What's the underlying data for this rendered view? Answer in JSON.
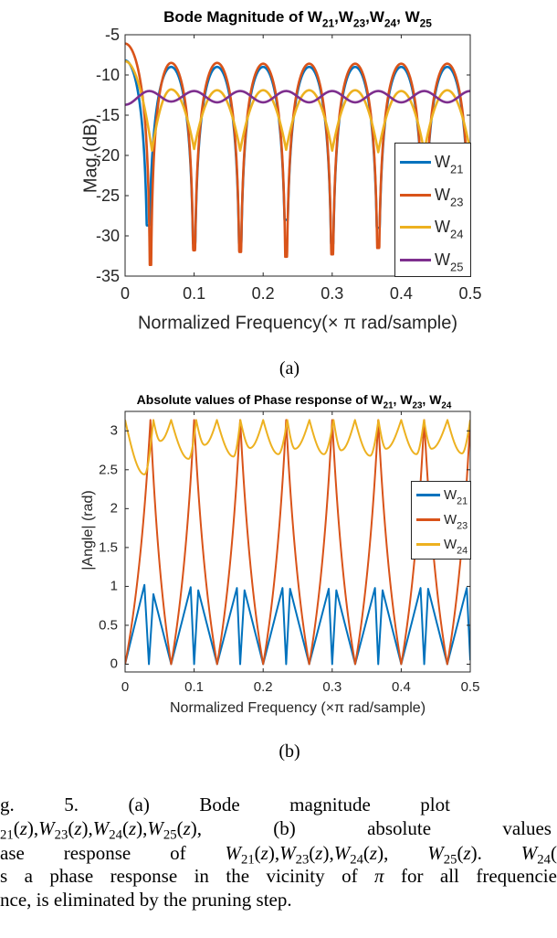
{
  "chart_data": [
    {
      "type": "line",
      "title_parts": [
        {
          "t": "Bode Magnitude of W"
        },
        {
          "t": "21",
          "sub": true
        },
        {
          "t": ",W"
        },
        {
          "t": "23",
          "sub": true
        },
        {
          "t": ",W"
        },
        {
          "t": "24",
          "sub": true
        },
        {
          "t": ", W"
        },
        {
          "t": "25",
          "sub": true
        }
      ],
      "xlabel": "Normalized Frequency(× π rad/sample)",
      "ylabel": "Mag.(dB)",
      "xlim": [
        0,
        0.5
      ],
      "ylim": [
        -35,
        -5
      ],
      "xticks": [
        "0",
        "0.1",
        "0.2",
        "0.3",
        "0.4",
        "0.5"
      ],
      "yticks": [
        "-5",
        "-10",
        "-15",
        "-20",
        "-25",
        "-30",
        "-35"
      ],
      "grid": false,
      "legend_placement": "bottom-right",
      "panel_label": "(a)",
      "series": [
        {
          "name": "W",
          "sub": "21",
          "color": "#0072BD",
          "interp": "log-notch",
          "points": [
            [
              0,
              -8.2
            ],
            [
              0.0333,
              -28.7
            ],
            [
              0.0667,
              -9
            ],
            [
              0.1,
              -31
            ],
            [
              0.1333,
              -9
            ],
            [
              0.1667,
              -31
            ],
            [
              0.2,
              -9
            ],
            [
              0.2333,
              -28
            ],
            [
              0.2667,
              -9
            ],
            [
              0.3,
              -31
            ],
            [
              0.3333,
              -9
            ],
            [
              0.3667,
              -29
            ],
            [
              0.4,
              -9
            ],
            [
              0.4333,
              -30
            ],
            [
              0.4667,
              -9
            ],
            [
              0.5,
              -29.5
            ]
          ]
        },
        {
          "name": "W",
          "sub": "23",
          "color": "#D95319",
          "interp": "log-notch",
          "points": [
            [
              0,
              -6.1
            ],
            [
              0.0367,
              -33.6
            ],
            [
              0.0667,
              -8.5
            ],
            [
              0.1,
              -31.8
            ],
            [
              0.1333,
              -8.5
            ],
            [
              0.1667,
              -32
            ],
            [
              0.2,
              -8.6
            ],
            [
              0.2333,
              -32.6
            ],
            [
              0.2667,
              -8.6
            ],
            [
              0.3,
              -32.3
            ],
            [
              0.3333,
              -8.6
            ],
            [
              0.3667,
              -31.5
            ],
            [
              0.4,
              -8.6
            ],
            [
              0.4333,
              -32
            ],
            [
              0.4667,
              -8.6
            ],
            [
              0.5,
              -32.5
            ]
          ]
        },
        {
          "name": "W",
          "sub": "24",
          "color": "#EDB120",
          "interp": "power",
          "points": [
            [
              0,
              -8.3
            ],
            [
              0.039,
              -19.4
            ],
            [
              0.0667,
              -11.8
            ],
            [
              0.1,
              -19.2
            ],
            [
              0.1333,
              -11.9
            ],
            [
              0.1667,
              -19.4
            ],
            [
              0.2,
              -11.9
            ],
            [
              0.2333,
              -19.3
            ],
            [
              0.2667,
              -11.9
            ],
            [
              0.3,
              -19.4
            ],
            [
              0.3333,
              -11.9
            ],
            [
              0.3667,
              -19.6
            ],
            [
              0.4,
              -12
            ],
            [
              0.4333,
              -19.5
            ],
            [
              0.4667,
              -11.9
            ],
            [
              0.5,
              -19.5
            ]
          ]
        },
        {
          "name": "W",
          "sub": "25",
          "color": "#7E2F8E",
          "interp": "cosine",
          "points": [
            [
              0,
              -13.7
            ],
            [
              0.035,
              -12
            ],
            [
              0.0667,
              -13.3
            ],
            [
              0.1,
              -12
            ],
            [
              0.1333,
              -13.4
            ],
            [
              0.1667,
              -12
            ],
            [
              0.2,
              -13.4
            ],
            [
              0.2333,
              -12
            ],
            [
              0.2667,
              -13.4
            ],
            [
              0.3,
              -12
            ],
            [
              0.3333,
              -13.4
            ],
            [
              0.3667,
              -12
            ],
            [
              0.4,
              -13.4
            ],
            [
              0.4333,
              -12
            ],
            [
              0.4667,
              -13.4
            ],
            [
              0.5,
              -12
            ]
          ]
        }
      ]
    },
    {
      "type": "line",
      "title_parts": [
        {
          "t": "Absolute values of Phase response of W"
        },
        {
          "t": "21",
          "sub": true
        },
        {
          "t": ", W"
        },
        {
          "t": "23",
          "sub": true
        },
        {
          "t": ", W"
        },
        {
          "t": "24",
          "sub": true
        }
      ],
      "xlabel": "Normalized Frequency (×π rad/sample)",
      "ylabel": "|Angle| (rad)",
      "xlim": [
        0,
        0.5
      ],
      "ylim": [
        -0.1,
        3.25
      ],
      "xticks": [
        "0",
        "0.1",
        "0.2",
        "0.3",
        "0.4",
        "0.5"
      ],
      "yticks": [
        "0",
        "0.5",
        "1",
        "1.5",
        "2",
        "2.5",
        "3"
      ],
      "grid": false,
      "legend_placement": "right",
      "panel_label": "(b)",
      "series": [
        {
          "name": "W",
          "sub": "21",
          "color": "#0072BD",
          "interp": "linear",
          "points": [
            [
              0,
              0
            ],
            [
              0.028,
              1.02
            ],
            [
              0.0345,
              0
            ],
            [
              0.041,
              0.9
            ],
            [
              0.0667,
              0
            ],
            [
              0.095,
              0.99
            ],
            [
              0.1,
              0
            ],
            [
              0.106,
              0.95
            ],
            [
              0.1333,
              0
            ],
            [
              0.162,
              0.98
            ],
            [
              0.1667,
              0
            ],
            [
              0.173,
              0.95
            ],
            [
              0.2,
              0
            ],
            [
              0.228,
              0.98
            ],
            [
              0.2333,
              0
            ],
            [
              0.239,
              0.97
            ],
            [
              0.2667,
              0
            ],
            [
              0.295,
              0.97
            ],
            [
              0.3,
              0
            ],
            [
              0.306,
              0.95
            ],
            [
              0.3333,
              0
            ],
            [
              0.362,
              0.98
            ],
            [
              0.3667,
              0
            ],
            [
              0.373,
              0.95
            ],
            [
              0.4,
              0
            ],
            [
              0.428,
              0.98
            ],
            [
              0.4333,
              0
            ],
            [
              0.439,
              0.97
            ],
            [
              0.4667,
              0
            ],
            [
              0.495,
              0.98
            ],
            [
              0.5,
              0.05
            ]
          ]
        },
        {
          "name": "W",
          "sub": "23",
          "color": "#D95319",
          "interp": "spike",
          "points": [
            [
              0,
              0
            ],
            [
              0.0367,
              3.14
            ],
            [
              0.0667,
              0
            ],
            [
              0.1,
              3.14
            ],
            [
              0.1333,
              0
            ],
            [
              0.1667,
              3.14
            ],
            [
              0.2,
              0
            ],
            [
              0.2333,
              3.14
            ],
            [
              0.2667,
              0
            ],
            [
              0.3,
              3.14
            ],
            [
              0.3333,
              0
            ],
            [
              0.3667,
              3.14
            ],
            [
              0.4,
              0
            ],
            [
              0.4333,
              3.14
            ],
            [
              0.4667,
              0
            ],
            [
              0.5,
              3.14
            ]
          ]
        },
        {
          "name": "W",
          "sub": "24",
          "color": "#EDB120",
          "interp": "sine-dip",
          "points": [
            [
              0,
              3.14
            ],
            [
              0.028,
              2.44
            ],
            [
              0.041,
              3.14
            ],
            [
              0.051,
              2.87
            ],
            [
              0.0667,
              3.14
            ],
            [
              0.092,
              2.64
            ],
            [
              0.103,
              3.14
            ],
            [
              0.115,
              2.82
            ],
            [
              0.133,
              3.14
            ],
            [
              0.157,
              2.67
            ],
            [
              0.167,
              3.14
            ],
            [
              0.181,
              2.78
            ],
            [
              0.2,
              3.14
            ],
            [
              0.222,
              2.7
            ],
            [
              0.235,
              3.14
            ],
            [
              0.246,
              2.77
            ],
            [
              0.267,
              3.14
            ],
            [
              0.288,
              2.7
            ],
            [
              0.302,
              3.14
            ],
            [
              0.313,
              2.75
            ],
            [
              0.333,
              3.14
            ],
            [
              0.355,
              2.68
            ],
            [
              0.367,
              3.14
            ],
            [
              0.378,
              2.77
            ],
            [
              0.4,
              3.14
            ],
            [
              0.422,
              2.7
            ],
            [
              0.433,
              3.14
            ],
            [
              0.444,
              2.77
            ],
            [
              0.467,
              3.14
            ],
            [
              0.488,
              2.71
            ],
            [
              0.5,
              3.14
            ]
          ]
        }
      ]
    }
  ],
  "caption": {
    "lines": [
      [
        [
          [
            "g.",
            ""
          ]
        ],
        [
          [
            "5.",
            ""
          ]
        ],
        [
          [
            "(a)",
            ""
          ]
        ],
        [
          [
            "Bode",
            ""
          ]
        ],
        [
          [
            "magnitude",
            ""
          ]
        ],
        [
          [
            "plot",
            ""
          ]
        ]
      ],
      [
        [
          [
            "21",
            "sub"
          ],
          [
            "(",
            ""
          ],
          [
            "z",
            "i"
          ],
          [
            "),",
            ""
          ],
          [
            "W",
            "i"
          ],
          [
            "23",
            "sub"
          ],
          [
            "(",
            ""
          ],
          [
            "z",
            "i"
          ],
          [
            "),",
            ""
          ],
          [
            "W",
            "i"
          ],
          [
            "24",
            "sub"
          ],
          [
            "(",
            ""
          ],
          [
            "z",
            "i"
          ],
          [
            "),",
            ""
          ],
          [
            "W",
            "i"
          ],
          [
            "25",
            "sub"
          ],
          [
            "(",
            ""
          ],
          [
            "z",
            "i"
          ],
          [
            "),",
            ""
          ]
        ],
        [
          [
            "(b)",
            ""
          ]
        ],
        [
          [
            "absolute",
            ""
          ]
        ],
        [
          [
            "values",
            ""
          ]
        ]
      ],
      [
        [
          [
            "ase",
            ""
          ]
        ],
        [
          [
            "response",
            ""
          ]
        ],
        [
          [
            "of",
            ""
          ]
        ],
        [
          [
            "W",
            "i"
          ],
          [
            "21",
            "sub"
          ],
          [
            "(",
            ""
          ],
          [
            "z",
            "i"
          ],
          [
            "),",
            ""
          ],
          [
            "W",
            "i"
          ],
          [
            "23",
            "sub"
          ],
          [
            "(",
            ""
          ],
          [
            "z",
            "i"
          ],
          [
            "),",
            ""
          ],
          [
            "W",
            "i"
          ],
          [
            "24",
            "sub"
          ],
          [
            "(",
            ""
          ],
          [
            "z",
            "i"
          ],
          [
            "),",
            ""
          ]
        ],
        [
          [
            "W",
            "i"
          ],
          [
            "25",
            "sub"
          ],
          [
            "(",
            ""
          ],
          [
            "z",
            "i"
          ],
          [
            ").",
            ""
          ]
        ],
        [
          [
            "W",
            "i"
          ],
          [
            "24",
            "sub"
          ],
          [
            "(",
            ""
          ]
        ]
      ],
      [
        [
          [
            "s",
            ""
          ]
        ],
        [
          [
            "a",
            ""
          ]
        ],
        [
          [
            "phase",
            ""
          ]
        ],
        [
          [
            "response",
            ""
          ]
        ],
        [
          [
            "in",
            ""
          ]
        ],
        [
          [
            "the",
            ""
          ]
        ],
        [
          [
            "vicinity",
            ""
          ]
        ],
        [
          [
            "of",
            ""
          ]
        ],
        [
          [
            "π",
            "i"
          ]
        ],
        [
          [
            "for",
            ""
          ]
        ],
        [
          [
            "all",
            ""
          ]
        ],
        [
          [
            "frequencie",
            ""
          ]
        ]
      ],
      [
        [
          [
            "nce, is eliminated by the pruning step.",
            ""
          ]
        ]
      ]
    ]
  }
}
